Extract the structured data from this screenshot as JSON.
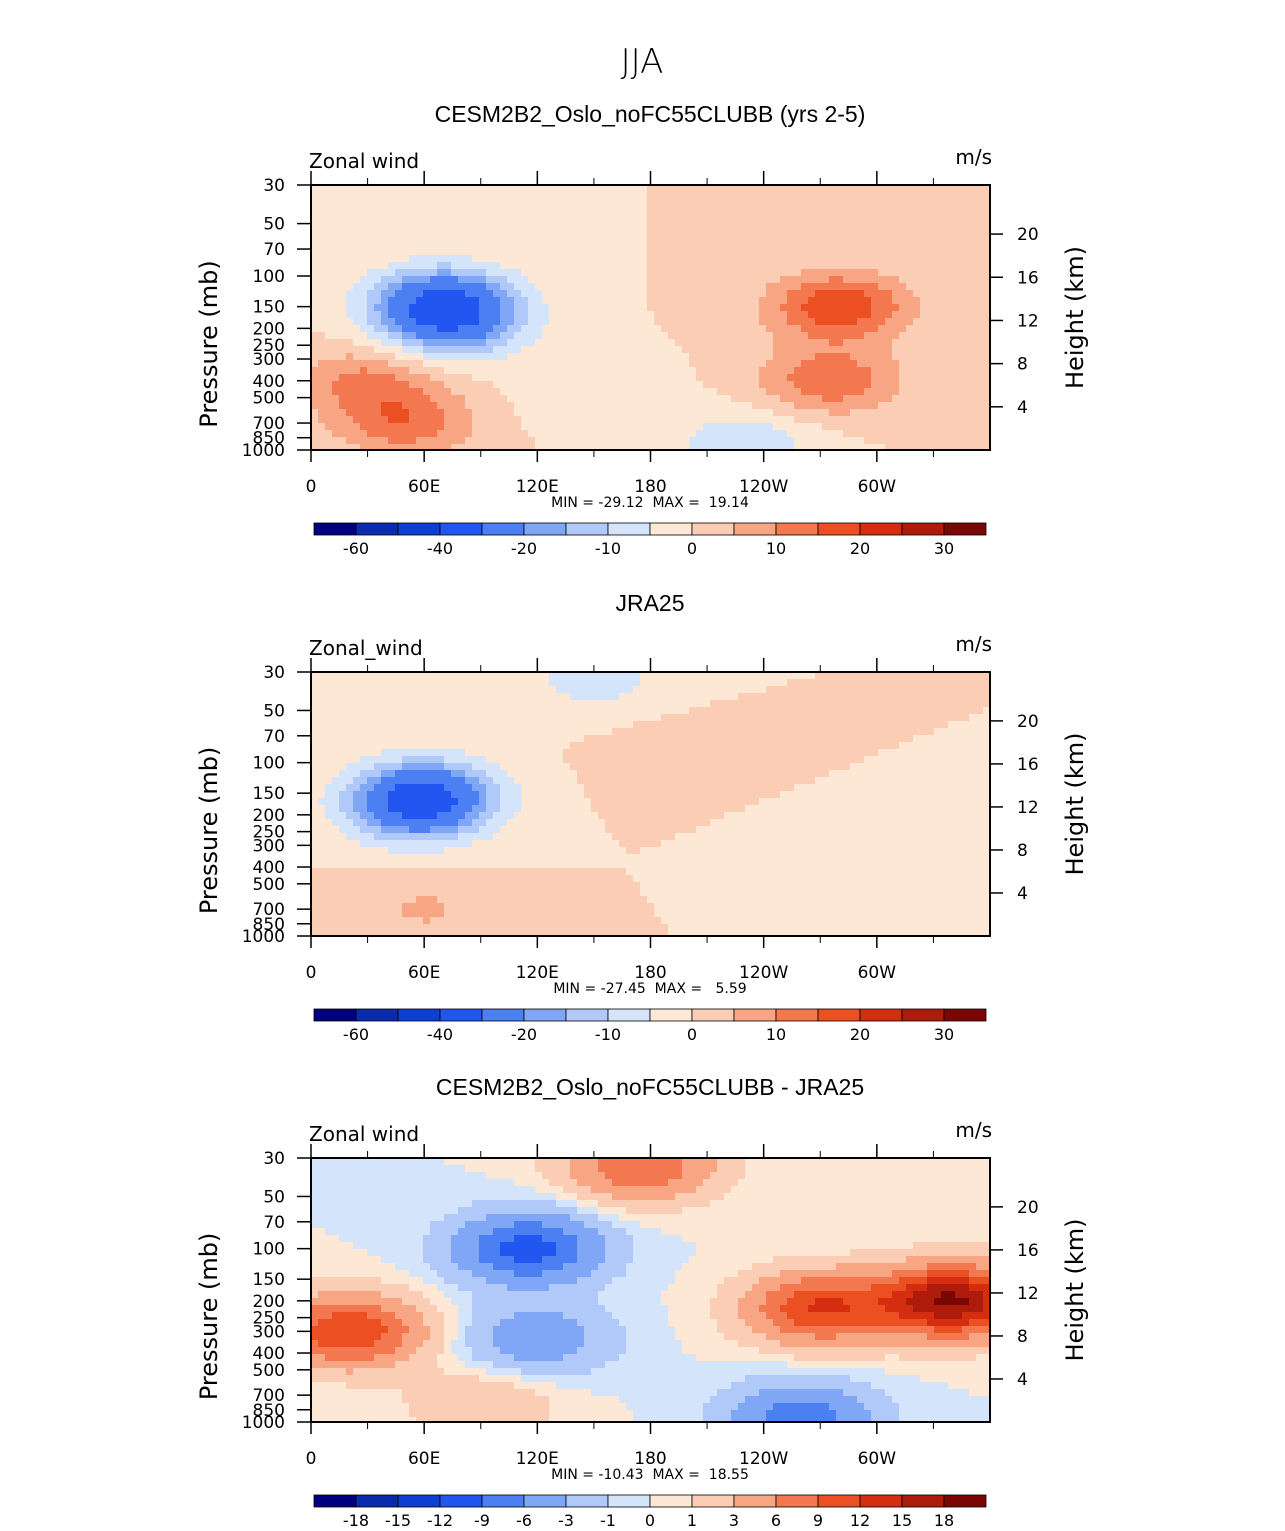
{
  "figure_title": "JJA",
  "palette": [
    "#00007f",
    "#0a2bae",
    "#0e3fd3",
    "#2156f0",
    "#4b7ff2",
    "#80a6f6",
    "#b1c9f8",
    "#d4e4fb",
    "#fde8d6",
    "#fccdb5",
    "#f8a583",
    "#f3784f",
    "#ec4f22",
    "#d52d10",
    "#ae1b0a",
    "#7b0606"
  ],
  "chart_data": [
    {
      "type": "heatmap",
      "title": "CESM2B2_Oslo_noFC55CLUBB (yrs 2-5)",
      "left_label": "Zonal wind",
      "units": "m/s",
      "ylabel": "Pressure (mb)",
      "ylabel_right": "Height (km)",
      "x_ticks": [
        "0",
        "60E",
        "120E",
        "180",
        "120W",
        "60W"
      ],
      "x_range": [
        0,
        360
      ],
      "y_ticks": [
        "30",
        "50",
        "70",
        "100",
        "150",
        "200",
        "250",
        "300",
        "400",
        "500",
        "700",
        "850",
        "1000"
      ],
      "y_range_mb": [
        1000,
        30
      ],
      "y_right_ticks": [
        "20",
        "16",
        "12",
        "8",
        "4"
      ],
      "min_max_text": "MIN = -29.12  MAX =  19.14",
      "levels": [
        -70,
        -60,
        -50,
        -40,
        -30,
        -20,
        -15,
        -10,
        -5,
        0,
        5,
        10,
        15,
        20,
        25,
        30,
        35
      ],
      "colorbar_labels": [
        "-60",
        "-40",
        "-20",
        "-10",
        "0",
        "10",
        "20",
        "30"
      ],
      "features": [
        {
          "lon": 70,
          "p": 140,
          "value": -29.1
        },
        {
          "lon": 75,
          "p": 200,
          "value": -16
        },
        {
          "lon": 280,
          "p": 150,
          "value": 19.1
        },
        {
          "lon": 275,
          "p": 400,
          "value": 14
        },
        {
          "lon": 30,
          "p": 400,
          "value": 11
        },
        {
          "lon": 50,
          "p": 700,
          "value": 13
        },
        {
          "lon": 230,
          "p": 920,
          "value": -9
        },
        {
          "lon": 150,
          "p": 500,
          "value": -4
        }
      ]
    },
    {
      "type": "heatmap",
      "title": "JRA25",
      "left_label": "Zonal_wind",
      "units": "m/s",
      "ylabel": "Pressure (mb)",
      "ylabel_right": "Height (km)",
      "x_ticks": [
        "0",
        "60E",
        "120E",
        "180",
        "120W",
        "60W"
      ],
      "x_range": [
        0,
        360
      ],
      "y_ticks": [
        "30",
        "50",
        "70",
        "100",
        "150",
        "200",
        "250",
        "300",
        "400",
        "500",
        "700",
        "850",
        "1000"
      ],
      "y_range_mb": [
        1000,
        30
      ],
      "y_right_ticks": [
        "20",
        "16",
        "12",
        "8",
        "4"
      ],
      "min_max_text": "MIN = -27.45  MAX =   5.59",
      "levels": [
        -70,
        -60,
        -50,
        -40,
        -30,
        -20,
        -15,
        -10,
        -5,
        0,
        5,
        10,
        15,
        20,
        25,
        30,
        35
      ],
      "colorbar_labels": [
        "-60",
        "-40",
        "-20",
        "-10",
        "0",
        "10",
        "20",
        "30"
      ],
      "features": [
        {
          "lon": 60,
          "p": 150,
          "value": -27.4
        },
        {
          "lon": 55,
          "p": 200,
          "value": -14
        },
        {
          "lon": 150,
          "p": 32,
          "value": -8
        },
        {
          "lon": 200,
          "p": 95,
          "value": 4
        },
        {
          "lon": 60,
          "p": 700,
          "value": 5.6
        },
        {
          "lon": 280,
          "p": 300,
          "value": -5
        }
      ]
    },
    {
      "type": "heatmap",
      "title": "CESM2B2_Oslo_noFC55CLUBB - JRA25",
      "left_label": "Zonal wind",
      "units": "m/s",
      "ylabel": "Pressure (mb)",
      "ylabel_right": "Height (km)",
      "x_ticks": [
        "0",
        "60E",
        "120E",
        "180",
        "120W",
        "60W"
      ],
      "x_range": [
        0,
        360
      ],
      "y_ticks": [
        "30",
        "50",
        "70",
        "100",
        "150",
        "200",
        "250",
        "300",
        "400",
        "500",
        "700",
        "850",
        "1000"
      ],
      "y_range_mb": [
        1000,
        30
      ],
      "y_right_ticks": [
        "20",
        "16",
        "12",
        "8",
        "4"
      ],
      "min_max_text": "MIN = -10.43  MAX =  18.55",
      "levels": [
        -21,
        -18,
        -15,
        -12,
        -9,
        -6,
        -3,
        -1,
        0,
        1,
        3,
        6,
        9,
        12,
        15,
        18,
        21
      ],
      "colorbar_labels": [
        "-18",
        "-15",
        "-12",
        "-9",
        "-6",
        "-3",
        "-1",
        "0",
        "1",
        "3",
        "6",
        "9",
        "12",
        "15",
        "18"
      ],
      "features": [
        {
          "lon": 175,
          "p": 33,
          "value": 9
        },
        {
          "lon": 115,
          "p": 100,
          "value": -10.4
        },
        {
          "lon": 120,
          "p": 330,
          "value": -5
        },
        {
          "lon": 340,
          "p": 200,
          "value": 18.5
        },
        {
          "lon": 270,
          "p": 220,
          "value": 12
        },
        {
          "lon": 20,
          "p": 300,
          "value": 12
        },
        {
          "lon": 260,
          "p": 960,
          "value": -8
        },
        {
          "lon": 90,
          "p": 800,
          "value": 3
        }
      ]
    }
  ]
}
